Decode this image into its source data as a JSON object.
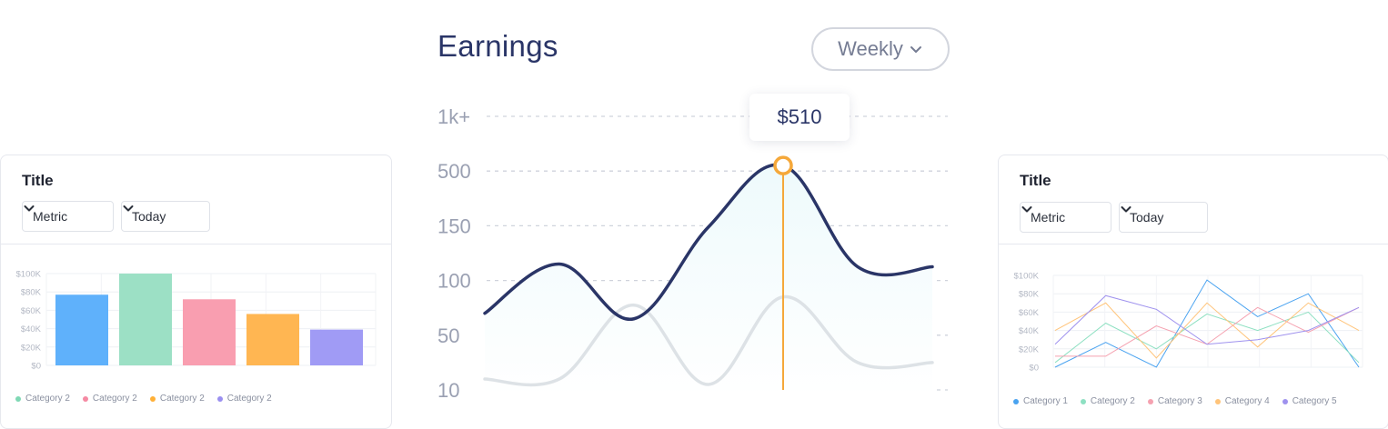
{
  "earnings": {
    "title": "Earnings",
    "dropdown_label": "Weekly",
    "tooltip_value": "$510"
  },
  "colors": {
    "main_line": "#2a3567",
    "secondary_line": "#dde2e6",
    "highlight": "#f5a83a",
    "area_fill": "#eefafc"
  },
  "left_card": {
    "title": "Title",
    "metric_label": "Metric",
    "period_label": "Today"
  },
  "right_card": {
    "title": "Title",
    "metric_label": "Metric",
    "period_label": "Today"
  },
  "chart_data": [
    {
      "type": "line",
      "y_ticks": [
        "10",
        "50",
        "100",
        "150",
        "500",
        "1k+"
      ],
      "series": [
        {
          "color": "#2a3567",
          "points": [
            [
              0,
              2.4
            ],
            [
              1,
              3.3
            ],
            [
              2,
              2.3
            ],
            [
              3,
              3.98
            ],
            [
              4,
              5.1
            ],
            [
              5,
              3.25
            ],
            [
              6,
              3.25
            ]
          ]
        },
        {
          "color": "#dde2e6",
          "points": [
            [
              0,
              1.2
            ],
            [
              1,
              1.2
            ],
            [
              2,
              2.55
            ],
            [
              3,
              1.1
            ],
            [
              4,
              2.7
            ],
            [
              5,
              1.5
            ],
            [
              6,
              1.5
            ]
          ]
        }
      ],
      "highlight": {
        "x": 4,
        "y": 5.1,
        "label": "$510"
      },
      "grid": true
    },
    {
      "type": "bar",
      "y_ticks": [
        "$0",
        "$20K",
        "$40K",
        "$60K",
        "$80K",
        "$100K"
      ],
      "ylim": [
        0,
        100000
      ],
      "values": [
        77000,
        100000,
        72000,
        56000,
        39000
      ],
      "bar_colors": [
        "#5fb1fb",
        "#9ce0c5",
        "#f99eb0",
        "#ffb652",
        "#a09bf5"
      ],
      "legend": [
        {
          "name": "Category 2",
          "color": "#7fd8b4"
        },
        {
          "name": "Category 2",
          "color": "#f58aa3"
        },
        {
          "name": "Category 2",
          "color": "#ffb037"
        },
        {
          "name": "Category 2",
          "color": "#9a8ff0"
        }
      ],
      "grid": true
    },
    {
      "type": "line",
      "y_ticks": [
        "$0",
        "$20K",
        "$40K",
        "$60K",
        "$80K",
        "$100K"
      ],
      "ylim": [
        0,
        100000
      ],
      "series": [
        {
          "name": "Category 1",
          "color": "#4aa3f0",
          "values": [
            0,
            27000,
            0,
            95000,
            55000,
            80000,
            0
          ]
        },
        {
          "name": "Category 2",
          "color": "#8ee0c2",
          "values": [
            5000,
            48000,
            20000,
            58000,
            40000,
            60000,
            5000
          ]
        },
        {
          "name": "Category 3",
          "color": "#f5a1b0",
          "values": [
            12000,
            12000,
            45000,
            25000,
            65000,
            38000,
            65000
          ]
        },
        {
          "name": "Category 4",
          "color": "#ffc47a",
          "values": [
            40000,
            70000,
            10000,
            70000,
            22000,
            70000,
            40000
          ]
        },
        {
          "name": "Category 5",
          "color": "#9f92ee",
          "values": [
            25000,
            78000,
            63000,
            25000,
            30000,
            40000,
            65000
          ]
        }
      ],
      "grid": true
    }
  ]
}
